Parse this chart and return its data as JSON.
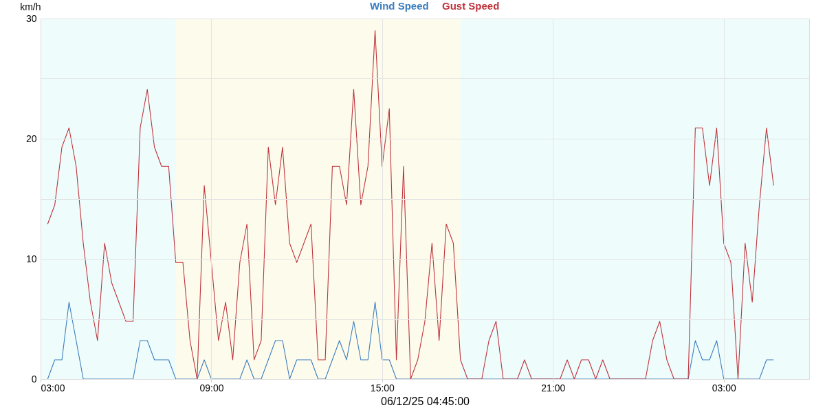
{
  "chart_data": {
    "type": "line",
    "xlabel": "06/12/25 04:45:00",
    "ylabel": "km/h",
    "legend": "top",
    "grid": true,
    "xlim": [
      "--06-11T03:00",
      "--06-12T06:00"
    ],
    "ylim": [
      0,
      30
    ],
    "xticks": [
      {
        "value": "--06-11T03:00",
        "label": "03:00"
      },
      {
        "value": "--06-11T09:00",
        "label": "09:00"
      },
      {
        "value": "--06-11T15:00",
        "label": "15:00"
      },
      {
        "value": "--06-11T21:00",
        "label": "21:00"
      },
      {
        "value": "--06-12T03:00",
        "label": "03:00"
      }
    ],
    "yticks": [
      0,
      {
        "value": 5,
        "label": null
      },
      10,
      {
        "value": 15,
        "label": null
      },
      20,
      {
        "value": 25,
        "label": null
      },
      30
    ],
    "bands": [
      {
        "axis": "x",
        "from": "--06-11T03:00",
        "to": "--06-11T07:45",
        "color": "#eefcfc"
      },
      {
        "axis": "x",
        "from": "--06-11T07:45",
        "to": "--06-11T17:45",
        "color": "#fdfbec"
      },
      {
        "axis": "x",
        "from": "--06-11T17:45",
        "to": "--06-12T06:00",
        "color": "#eefcfc"
      }
    ],
    "x": [
      "--06-11T03:15",
      "--06-11T03:30",
      "--06-11T03:45",
      "--06-11T04:00",
      "--06-11T04:15",
      "--06-11T04:30",
      "--06-11T04:45",
      "--06-11T05:00",
      "--06-11T05:15",
      "--06-11T05:30",
      "--06-11T05:45",
      "--06-11T06:00",
      "--06-11T06:15",
      "--06-11T06:30",
      "--06-11T06:45",
      "--06-11T07:00",
      "--06-11T07:15",
      "--06-11T07:30",
      "--06-11T07:45",
      "--06-11T08:00",
      "--06-11T08:15",
      "--06-11T08:30",
      "--06-11T08:45",
      "--06-11T09:00",
      "--06-11T09:15",
      "--06-11T09:30",
      "--06-11T09:45",
      "--06-11T10:00",
      "--06-11T10:15",
      "--06-11T10:30",
      "--06-11T10:45",
      "--06-11T11:00",
      "--06-11T11:15",
      "--06-11T11:30",
      "--06-11T11:45",
      "--06-11T12:00",
      "--06-11T12:15",
      "--06-11T12:30",
      "--06-11T12:45",
      "--06-11T13:00",
      "--06-11T13:15",
      "--06-11T13:30",
      "--06-11T13:45",
      "--06-11T14:00",
      "--06-11T14:15",
      "--06-11T14:30",
      "--06-11T14:45",
      "--06-11T15:00",
      "--06-11T15:15",
      "--06-11T15:30",
      "--06-11T15:45",
      "--06-11T16:00",
      "--06-11T16:15",
      "--06-11T16:30",
      "--06-11T16:45",
      "--06-11T17:00",
      "--06-11T17:15",
      "--06-11T17:30",
      "--06-11T17:45",
      "--06-11T18:00",
      "--06-11T18:15",
      "--06-11T18:30",
      "--06-11T18:45",
      "--06-11T19:00",
      "--06-11T19:15",
      "--06-11T19:30",
      "--06-11T19:45",
      "--06-11T20:00",
      "--06-11T20:15",
      "--06-11T20:30",
      "--06-11T20:45",
      "--06-11T21:00",
      "--06-11T21:15",
      "--06-11T21:30",
      "--06-11T21:45",
      "--06-11T22:00",
      "--06-11T22:15",
      "--06-11T22:30",
      "--06-11T22:45",
      "--06-11T23:00",
      "--06-11T23:15",
      "--06-11T23:30",
      "--06-11T23:45",
      "--06-12T00:00",
      "--06-12T00:15",
      "--06-12T00:30",
      "--06-12T00:45",
      "--06-12T01:00",
      "--06-12T01:15",
      "--06-12T01:30",
      "--06-12T01:45",
      "--06-12T02:00",
      "--06-12T02:15",
      "--06-12T02:30",
      "--06-12T02:45",
      "--06-12T03:00",
      "--06-12T03:15",
      "--06-12T03:30",
      "--06-12T03:45",
      "--06-12T04:00",
      "--06-12T04:15",
      "--06-12T04:30",
      "--06-12T04:45"
    ],
    "series": [
      {
        "name": "Wind Speed",
        "color": "#3b7dbd",
        "values": [
          0,
          1.6,
          1.6,
          6.4,
          3.2,
          0,
          0,
          0,
          0,
          0,
          0,
          0,
          0,
          3.2,
          3.2,
          1.6,
          1.6,
          1.6,
          0,
          0,
          0,
          0,
          1.6,
          0,
          0,
          0,
          0,
          0,
          1.6,
          0,
          0,
          1.6,
          3.2,
          3.2,
          0,
          1.6,
          1.6,
          1.6,
          0,
          0,
          1.6,
          3.2,
          1.6,
          4.8,
          1.6,
          1.6,
          6.4,
          1.6,
          1.6,
          0,
          0,
          0,
          0,
          0,
          0,
          0,
          0,
          0,
          0,
          0,
          0,
          0,
          0,
          0,
          0,
          0,
          0,
          0,
          0,
          0,
          0,
          0,
          0,
          0,
          0,
          0,
          0,
          0,
          0,
          0,
          0,
          0,
          0,
          0,
          0,
          0,
          0,
          0,
          0,
          0,
          0,
          3.2,
          1.6,
          1.6,
          3.2,
          0,
          0,
          0,
          0,
          0,
          0,
          1.6,
          1.6
        ]
      },
      {
        "name": "Gust Speed",
        "color": "#be333b",
        "values": [
          12.9,
          14.5,
          19.3,
          20.9,
          17.7,
          11.3,
          6.4,
          3.2,
          11.3,
          8.0,
          6.4,
          4.8,
          4.8,
          20.9,
          24.1,
          19.3,
          17.7,
          17.7,
          9.7,
          9.7,
          3.2,
          0,
          16.1,
          9.7,
          3.2,
          6.4,
          1.6,
          9.7,
          12.9,
          1.6,
          3.2,
          19.3,
          14.5,
          19.3,
          11.3,
          9.7,
          11.3,
          12.9,
          1.6,
          1.6,
          17.7,
          17.7,
          14.5,
          24.1,
          14.5,
          17.7,
          29.0,
          17.7,
          22.5,
          1.6,
          17.7,
          0,
          1.6,
          4.8,
          11.3,
          3.2,
          12.9,
          11.3,
          1.6,
          0,
          0,
          0,
          3.2,
          4.8,
          0,
          0,
          0,
          1.6,
          0,
          0,
          0,
          0,
          0,
          1.6,
          0,
          1.6,
          1.6,
          0,
          1.6,
          0,
          0,
          0,
          0,
          0,
          0,
          3.2,
          4.8,
          1.6,
          0,
          0,
          0,
          20.9,
          20.9,
          16.1,
          20.9,
          11.3,
          9.7,
          0,
          11.3,
          6.4,
          14.5,
          20.9,
          16.1
        ]
      }
    ]
  }
}
